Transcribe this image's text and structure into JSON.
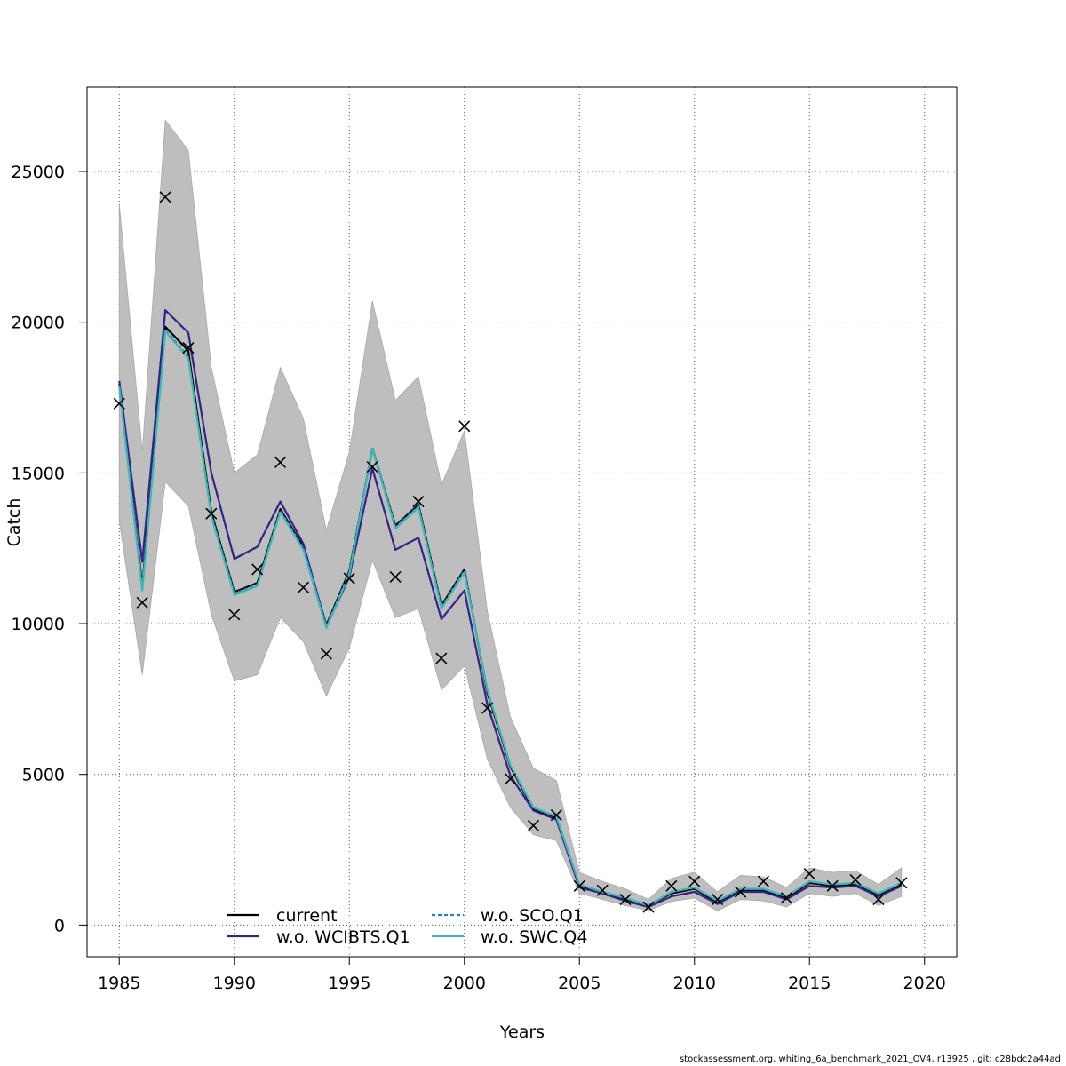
{
  "chart_data": {
    "type": "line",
    "xlabel": "Years",
    "ylabel": "Catch",
    "xlim": [
      1983.6,
      2021.4
    ],
    "ylim": [
      -1050,
      27800
    ],
    "x_ticks": [
      1985,
      1990,
      1995,
      2000,
      2005,
      2010,
      2015,
      2020
    ],
    "y_ticks": [
      0,
      5000,
      10000,
      15000,
      20000,
      25000
    ],
    "grid": true,
    "legend_position": "bottom-center",
    "years": [
      1985,
      1986,
      1987,
      1988,
      1989,
      1990,
      1991,
      1992,
      1993,
      1994,
      1995,
      1996,
      1997,
      1998,
      1999,
      2000,
      2001,
      2002,
      2003,
      2004,
      2005,
      2006,
      2007,
      2008,
      2009,
      2010,
      2011,
      2012,
      2013,
      2014,
      2015,
      2016,
      2017,
      2018,
      2019
    ],
    "confidence_band": {
      "lower": [
        13400,
        8300,
        14700,
        13900,
        10300,
        8100,
        8300,
        10200,
        9400,
        7600,
        9200,
        12100,
        10200,
        10500,
        7800,
        8600,
        5500,
        3900,
        3000,
        2800,
        1050,
        850,
        650,
        480,
        780,
        900,
        470,
        850,
        800,
        600,
        1050,
        950,
        1050,
        650,
        950
      ],
      "upper": [
        23900,
        15700,
        26700,
        25700,
        18500,
        15000,
        15600,
        18500,
        16800,
        13100,
        15700,
        20700,
        17400,
        18200,
        14600,
        16400,
        10400,
        6900,
        5200,
        4800,
        1750,
        1450,
        1200,
        850,
        1550,
        1750,
        1100,
        1650,
        1600,
        1250,
        1900,
        1750,
        1800,
        1350,
        1900
      ],
      "color": "#bebebe"
    },
    "observed": [
      17300,
      10700,
      24150,
      19150,
      13650,
      10300,
      11800,
      15350,
      11200,
      9000,
      11500,
      15200,
      11550,
      14050,
      8850,
      16550,
      7200,
      4850,
      3300,
      3650,
      1300,
      1150,
      850,
      600,
      1300,
      1450,
      850,
      1100,
      1450,
      900,
      1700,
      1300,
      1500,
      850,
      1400
    ],
    "series": [
      {
        "name": "current",
        "color": "#000000",
        "dash": "",
        "values": [
          17950,
          11250,
          19850,
          19050,
          13700,
          11050,
          11350,
          13800,
          12550,
          9950,
          11750,
          15800,
          13250,
          13950,
          10600,
          11800,
          7700,
          5250,
          3850,
          3550,
          1300,
          1050,
          850,
          650,
          1050,
          1200,
          750,
          1150,
          1150,
          900,
          1400,
          1300,
          1350,
          1000,
          1350
        ]
      },
      {
        "name": "w.o. WCIBTS.Q1",
        "color": "#332288",
        "dash": "",
        "values": [
          18050,
          12050,
          20400,
          19650,
          15000,
          12150,
          12550,
          14050,
          12650,
          9900,
          11550,
          15150,
          12450,
          12850,
          10150,
          11100,
          7300,
          4950,
          3800,
          3500,
          1250,
          1050,
          800,
          600,
          950,
          1100,
          700,
          1100,
          1100,
          850,
          1300,
          1250,
          1300,
          950,
          1300
        ]
      },
      {
        "name": "w.o. SCO.Q1",
        "color": "#1a85c8",
        "dash": "4,3",
        "values": [
          17900,
          11150,
          19750,
          18850,
          13600,
          11000,
          11300,
          13750,
          12500,
          9900,
          11700,
          15850,
          13200,
          13900,
          10550,
          11750,
          7750,
          5300,
          3900,
          3600,
          1350,
          1100,
          900,
          650,
          1100,
          1250,
          800,
          1200,
          1200,
          950,
          1450,
          1350,
          1400,
          1050,
          1400
        ]
      },
      {
        "name": "w.o. SWC.Q4",
        "color": "#3bb9b6",
        "dash": "",
        "values": [
          17850,
          11100,
          19700,
          18800,
          13550,
          10950,
          11250,
          13700,
          12450,
          9850,
          11650,
          15800,
          13150,
          13850,
          10500,
          11700,
          7800,
          5300,
          3900,
          3600,
          1350,
          1100,
          900,
          650,
          1100,
          1250,
          800,
          1200,
          1200,
          950,
          1450,
          1350,
          1400,
          1050,
          1400
        ]
      }
    ],
    "legend": [
      {
        "label": "current",
        "color": "#000000"
      },
      {
        "label": "w.o. WCIBTS.Q1",
        "color": "#332288"
      },
      {
        "label": "w.o. SCO.Q1",
        "color": "#1a85c8"
      },
      {
        "label": "w.o. SWC.Q4",
        "color": "#3bb9b6"
      }
    ]
  },
  "footer": "stockassessment.org, whiting_6a_benchmark_2021_OV4, r13925 , git: c28bdc2a44ad"
}
